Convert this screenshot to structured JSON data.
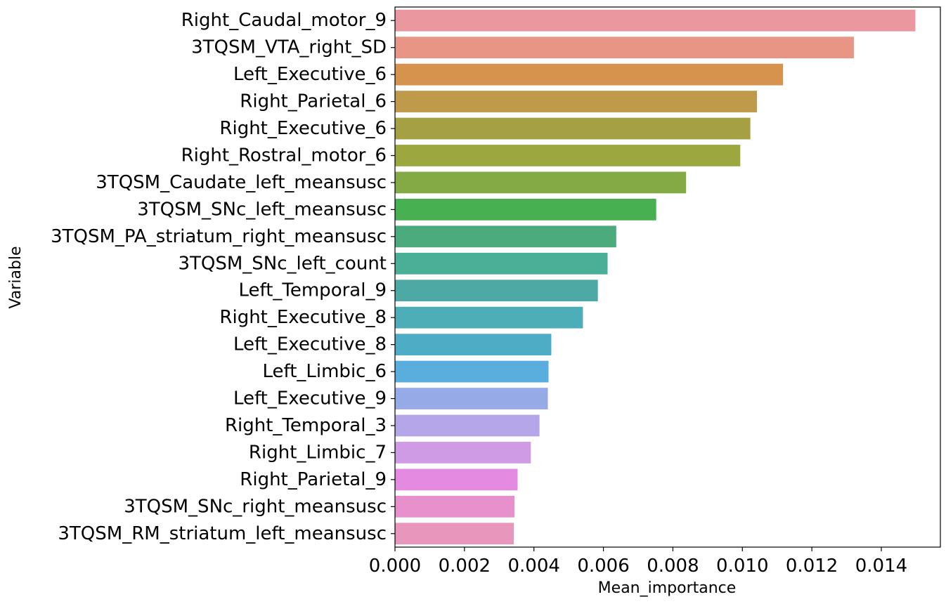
{
  "chart_data": {
    "type": "bar",
    "orientation": "horizontal",
    "title": "",
    "xlabel": "Mean_importance",
    "ylabel": "Variable",
    "xlim": [
      0,
      0.0157
    ],
    "xticks": [
      0.0,
      0.002,
      0.004,
      0.006,
      0.008,
      0.01,
      0.012,
      0.014
    ],
    "xtick_labels": [
      "0.000",
      "0.002",
      "0.004",
      "0.006",
      "0.008",
      "0.010",
      "0.012",
      "0.014"
    ],
    "grid": false,
    "categories": [
      "Right_Caudal_motor_9",
      "3TQSM_VTA_right_SD",
      "Left_Executive_6",
      "Right_Parietal_6",
      "Right_Executive_6",
      "Right_Rostral_motor_6",
      "3TQSM_Caudate_left_meansusc",
      "3TQSM_SNc_left_meansusc",
      "3TQSM_PA_striatum_right_meansusc",
      "3TQSM_SNc_left_count",
      "Left_Temporal_9",
      "Right_Executive_8",
      "Left_Executive_8",
      "Left_Limbic_6",
      "Left_Executive_9",
      "Right_Temporal_3",
      "Right_Limbic_7",
      "Right_Parietal_9",
      "3TQSM_SNc_right_meansusc",
      "3TQSM_RM_striatum_left_meansusc"
    ],
    "values": [
      0.01498,
      0.01321,
      0.01117,
      0.01042,
      0.01023,
      0.00994,
      0.00838,
      0.00752,
      0.00637,
      0.00612,
      0.00584,
      0.00541,
      0.0045,
      0.00442,
      0.0044,
      0.00416,
      0.00391,
      0.00353,
      0.00344,
      0.00342
    ],
    "colors": [
      "#ea97a0",
      "#e89585",
      "#d6934d",
      "#bf9a4b",
      "#a6a044",
      "#9ca740",
      "#84aa45",
      "#47b050",
      "#4bab7c",
      "#4bae96",
      "#4ea9a4",
      "#4daeb7",
      "#4eacc5",
      "#5aaede",
      "#96aae7",
      "#b5a6ea",
      "#cf9be5",
      "#e48ae1",
      "#e890cb",
      "#e896bb"
    ]
  }
}
